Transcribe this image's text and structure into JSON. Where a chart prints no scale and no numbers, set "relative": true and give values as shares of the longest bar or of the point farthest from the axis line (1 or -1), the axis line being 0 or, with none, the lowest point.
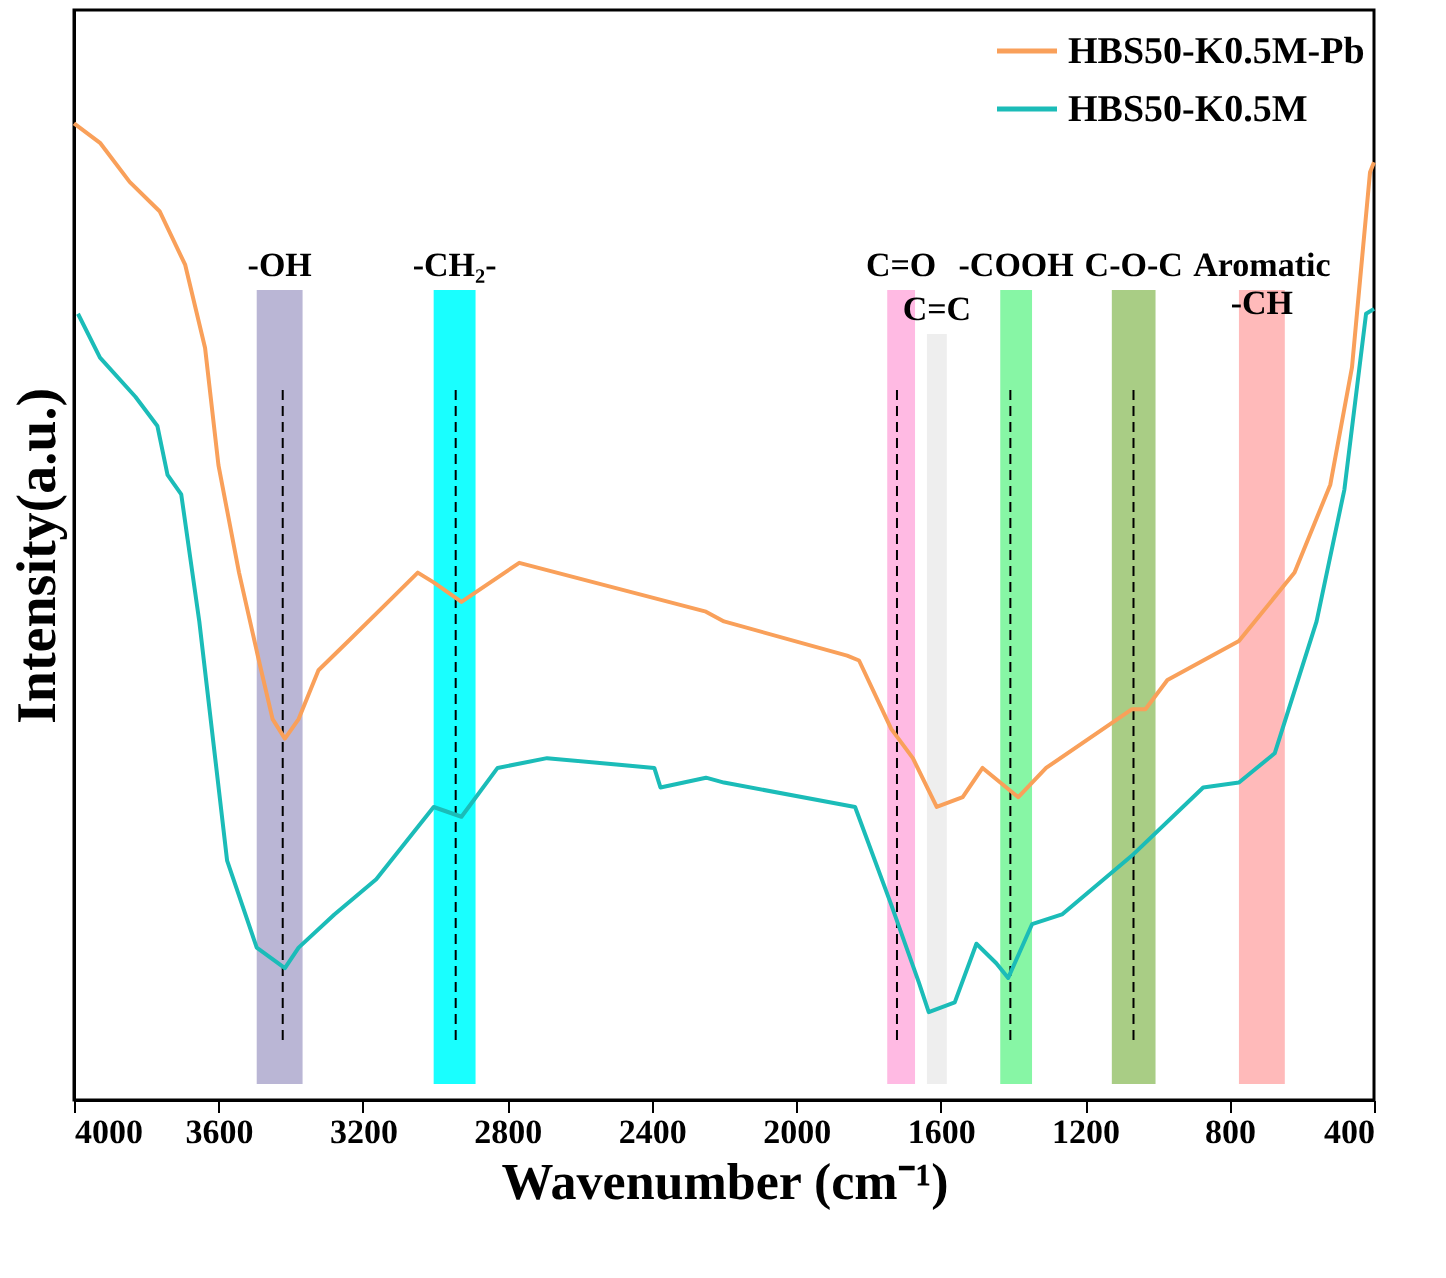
{
  "chart_data": {
    "type": "line",
    "relative": true,
    "xlabel": "Wavenumber (cm⁻¹)",
    "ylabel": "Intensity(a.u.)",
    "xlim": [
      4000,
      400
    ],
    "xticks": [
      4000,
      3600,
      3200,
      2800,
      2400,
      2000,
      1600,
      1200,
      800,
      400
    ],
    "legend": "top right",
    "grid": false,
    "line_style": "solid",
    "marker": "none",
    "series": [
      {
        "name": "HBS50-K0.5M-Pb",
        "color": "#f9a05a",
        "x": [
          4000,
          3928,
          3846,
          3763,
          3692,
          3637,
          3600,
          3543,
          3488,
          3450,
          3416,
          3378,
          3323,
          3240,
          3130,
          3048,
          3004,
          2927,
          2767,
          2250,
          2200,
          1859,
          1826,
          1737,
          1677,
          1611,
          1539,
          1484,
          1385,
          1308,
          1071,
          1033,
          972,
          774,
          620,
          521,
          461,
          411,
          400
        ],
        "values": [
          1.0,
          0.98,
          0.94,
          0.91,
          0.855,
          0.77,
          0.65,
          0.54,
          0.45,
          0.39,
          0.37,
          0.39,
          0.44,
          0.47,
          0.51,
          0.54,
          0.53,
          0.51,
          0.55,
          0.5,
          0.49,
          0.455,
          0.45,
          0.38,
          0.35,
          0.3,
          0.31,
          0.34,
          0.31,
          0.34,
          0.4,
          0.4,
          0.43,
          0.47,
          0.54,
          0.63,
          0.75,
          0.95,
          0.96
        ]
      },
      {
        "name": "HBS50-K0.5M",
        "color": "#1bbcb8",
        "x": [
          3989,
          3928,
          3830,
          3769,
          3741,
          3703,
          3653,
          3576,
          3494,
          3416,
          3378,
          3279,
          3163,
          3004,
          2927,
          2827,
          2690,
          2393,
          2376,
          2250,
          2200,
          1837,
          1737,
          1660,
          1633,
          1561,
          1501,
          1446,
          1413,
          1347,
          1264,
          1071,
          873,
          774,
          675,
          559,
          482,
          422,
          400
        ],
        "values": [
          0.805,
          0.76,
          0.72,
          0.69,
          0.64,
          0.62,
          0.49,
          0.245,
          0.156,
          0.135,
          0.156,
          0.19,
          0.226,
          0.3,
          0.29,
          0.34,
          0.35,
          0.34,
          0.32,
          0.33,
          0.325,
          0.3,
          0.2,
          0.12,
          0.09,
          0.1,
          0.16,
          0.14,
          0.125,
          0.18,
          0.19,
          0.25,
          0.32,
          0.325,
          0.355,
          0.49,
          0.625,
          0.805,
          0.81
        ]
      }
    ],
    "bands": [
      {
        "axis": "x",
        "from": 3494,
        "to": 3367,
        "label": "-OH",
        "color": "#b3aed0"
      },
      {
        "axis": "x",
        "from": 3004,
        "to": 2888,
        "label": "-CH₂-",
        "color": "#00ffff"
      },
      {
        "axis": "x",
        "from": 1748,
        "to": 1671,
        "label": "C=O",
        "color": "#ffb3e0"
      },
      {
        "axis": "x",
        "from": 1638,
        "to": 1583,
        "label": "C=C",
        "color": "#ececec"
      },
      {
        "axis": "x",
        "from": 1435,
        "to": 1347,
        "label": "-COOH",
        "color": "#7af59b"
      },
      {
        "axis": "x",
        "from": 1126,
        "to": 1005,
        "label": "C-O-C",
        "color": "#a0c878"
      },
      {
        "axis": "x",
        "from": 774,
        "to": 647,
        "label": "Aromatic\n-CH",
        "color": "#ffb3b3"
      }
    ],
    "ref_lines": [
      {
        "axis": "x",
        "value": 3422,
        "line_style": "dashed"
      },
      {
        "axis": "x",
        "value": 2943,
        "line_style": "dashed"
      },
      {
        "axis": "x",
        "value": 1721,
        "line_style": "dashed"
      },
      {
        "axis": "x",
        "value": 1407,
        "line_style": "dashed"
      },
      {
        "axis": "x",
        "value": 1066,
        "line_style": "dashed"
      }
    ]
  }
}
